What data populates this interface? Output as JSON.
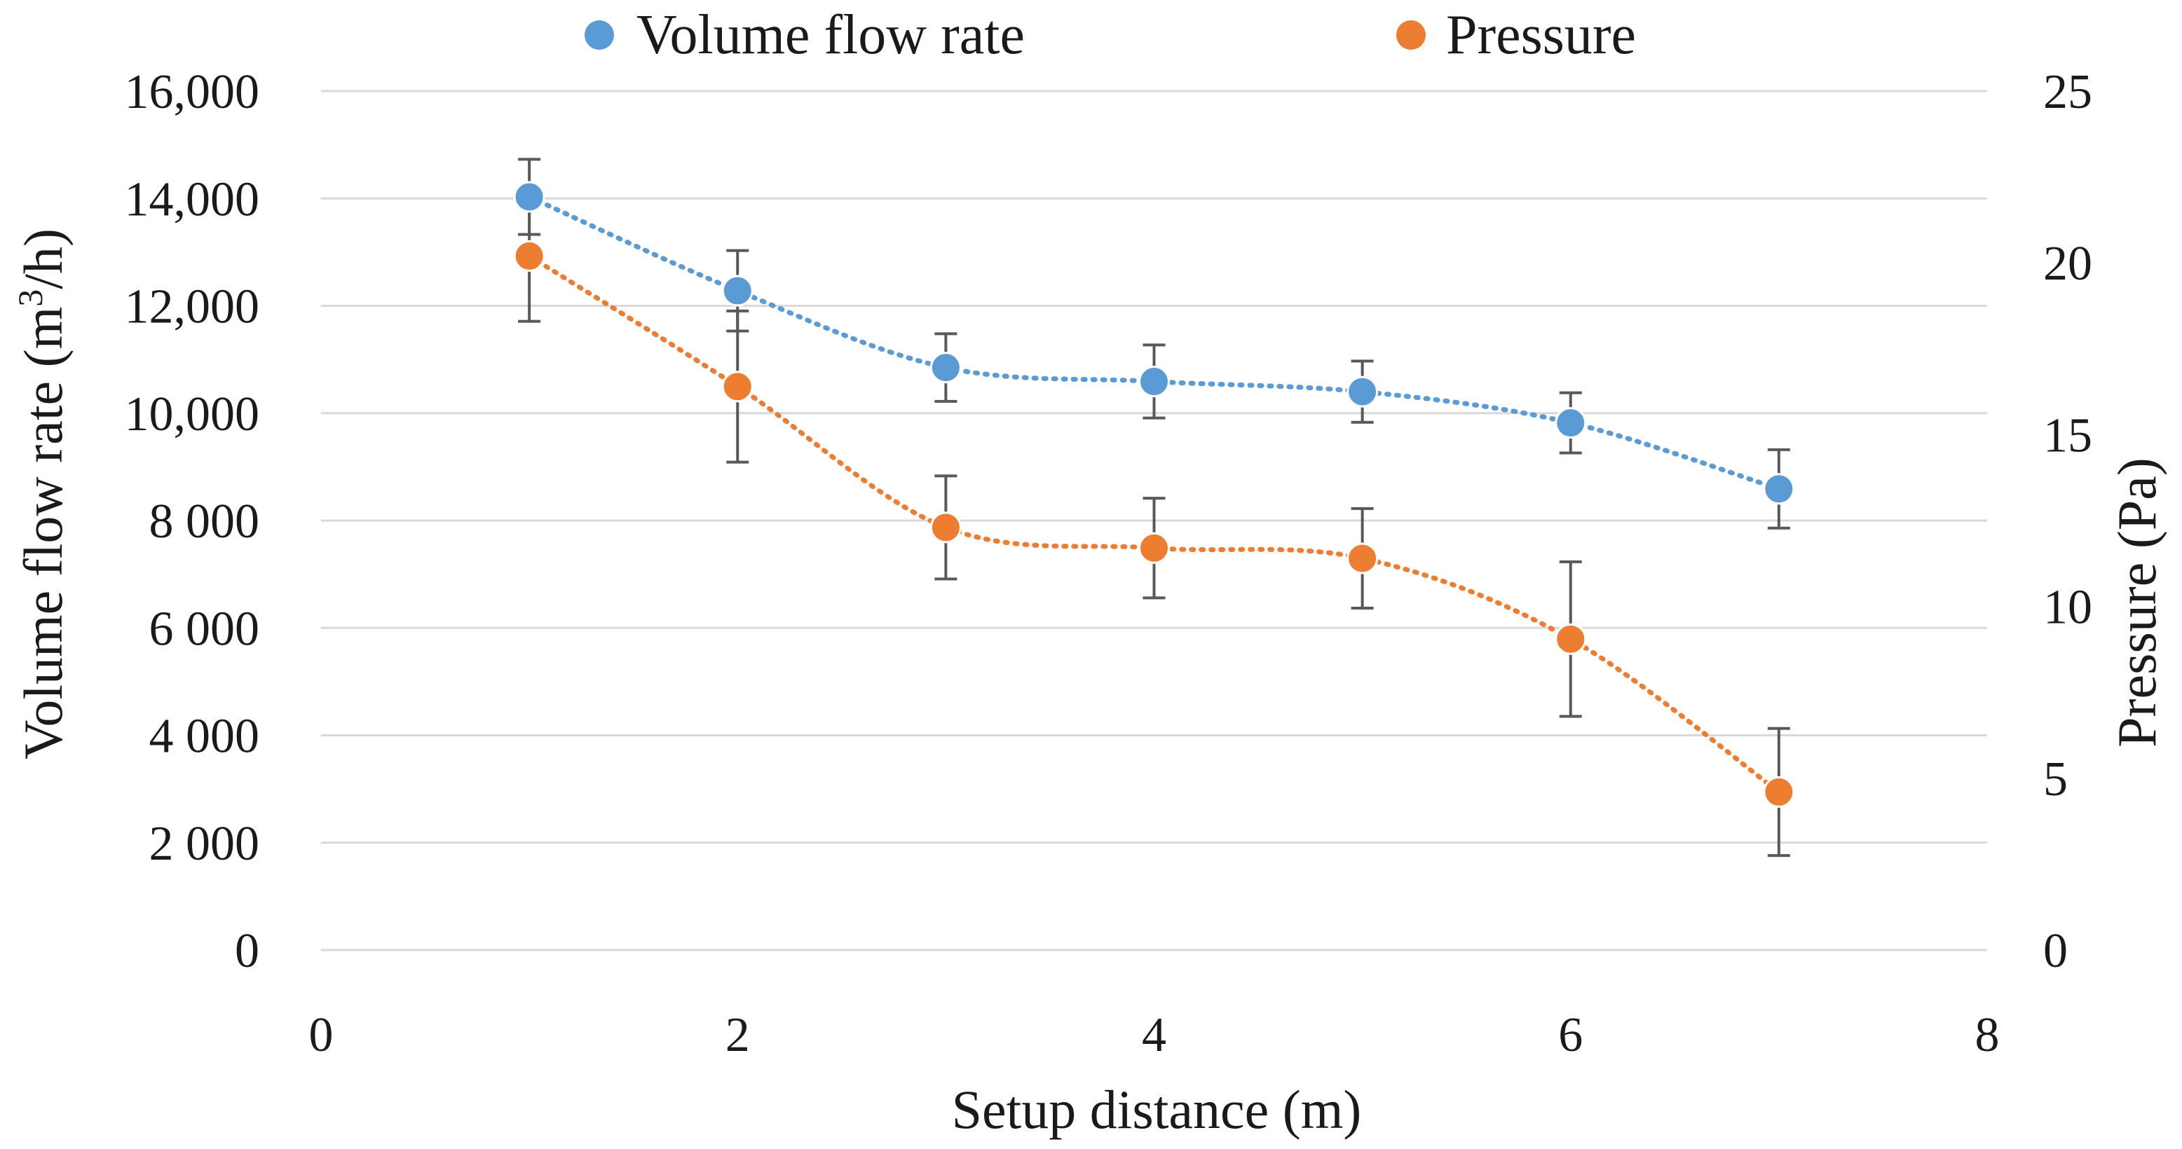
{
  "chart_data": {
    "type": "scatter",
    "title": "",
    "xlabel": "Setup distance (m)",
    "ylabel_left": {
      "main": "Volume flow rate (m",
      "sup": "3",
      "tail": "/h)"
    },
    "ylabel_right": "Pressure (Pa)",
    "xlim": [
      0,
      8
    ],
    "ylim_left": [
      0,
      16000
    ],
    "ylim_right": [
      0,
      25
    ],
    "x_ticks": [
      {
        "value": 0,
        "label": "0"
      },
      {
        "value": 2,
        "label": "2"
      },
      {
        "value": 4,
        "label": "4"
      },
      {
        "value": 6,
        "label": "6"
      },
      {
        "value": 8,
        "label": "8"
      }
    ],
    "y_left_ticks": [
      {
        "value": 0,
        "label": "0"
      },
      {
        "value": 2000,
        "label": "2 000"
      },
      {
        "value": 4000,
        "label": "4 000"
      },
      {
        "value": 6000,
        "label": "6 000"
      },
      {
        "value": 8000,
        "label": "8 000"
      },
      {
        "value": 10000,
        "label": "10,000"
      },
      {
        "value": 12000,
        "label": "12,000"
      },
      {
        "value": 14000,
        "label": "14,000"
      },
      {
        "value": 16000,
        "label": "16,000"
      }
    ],
    "y_right_ticks": [
      {
        "value": 0,
        "label": "0"
      },
      {
        "value": 5,
        "label": "5"
      },
      {
        "value": 10,
        "label": "10"
      },
      {
        "value": 15,
        "label": "15"
      },
      {
        "value": 20,
        "label": "20"
      },
      {
        "value": 25,
        "label": "25"
      }
    ],
    "grid": true,
    "legend_position": "top-center",
    "series": [
      {
        "name": "Volume flow rate",
        "axis": "left",
        "color": "#5B9BD5",
        "trendline": "dotted-smooth",
        "x": [
          1,
          2,
          3,
          4,
          5,
          6,
          7
        ],
        "values": [
          14030,
          12280,
          10850,
          10590,
          10400,
          9820,
          8590
        ],
        "error": [
          700,
          750,
          630,
          680,
          570,
          560,
          730
        ]
      },
      {
        "name": "Pressure",
        "axis": "right",
        "color": "#ED7D31",
        "trendline": "dotted-smooth",
        "x": [
          1,
          2,
          3,
          4,
          5,
          6,
          7
        ],
        "values": [
          20.2,
          16.4,
          12.3,
          11.7,
          11.4,
          9.05,
          4.6
        ],
        "error": [
          1.9,
          2.2,
          1.5,
          1.45,
          1.45,
          2.25,
          1.85
        ]
      }
    ]
  }
}
